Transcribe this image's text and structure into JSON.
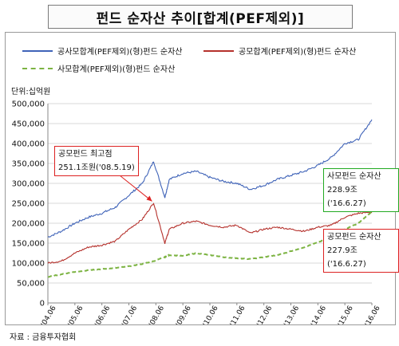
{
  "title": "펀드 순자산 추이[합계(PEF제외)]",
  "unit_label": "단위:십억원",
  "source": "자료 : 금융투자협회",
  "legend": [
    {
      "label": "공사모합계(PEF제외)(형)펀드 순자산",
      "color": "#3f63b8",
      "style": "solid"
    },
    {
      "label": "공모합계(PEF제외)(형)펀드 순자산",
      "color": "#b5312c",
      "style": "solid"
    },
    {
      "label": "사모합계(PEF제외)(형)펀드 순자산",
      "color": "#7cb342",
      "style": "dashed"
    }
  ],
  "annotations": [
    {
      "line1": "공모펀드 최고점",
      "line2": "251.1조원('08.5.19)",
      "border": "#d22"
    },
    {
      "line1": "사모펀드 순자산",
      "line2": "228.9조('16.6.27)",
      "border": "#2a2"
    },
    {
      "line1": "공모펀드 순자산",
      "line2": "227.9조('16.6.27)",
      "border": "#d22"
    }
  ],
  "chart_data": {
    "type": "line",
    "ylim": [
      0,
      500000
    ],
    "y_ticks": [
      "0",
      "50,000",
      "100,000",
      "150,000",
      "200,000",
      "250,000",
      "300,000",
      "350,000",
      "400,000",
      "450,000",
      "500,000"
    ],
    "x_ticks": [
      "'04.06",
      "'05.06",
      "'06.06",
      "'07.06",
      "'08.06",
      "'09.06",
      "'10.06",
      "'11.06",
      "'12.06",
      "'13.06",
      "'14.06",
      "'15.06",
      "'16.06"
    ],
    "grid": true,
    "series": [
      {
        "name": "공사모합계(PEF제외)(형)펀드 순자산",
        "x": [
          "'04.06",
          "'04.12",
          "'05.06",
          "'05.12",
          "'06.06",
          "'06.12",
          "'07.06",
          "'07.12",
          "'08.05",
          "'08.10",
          "'08.12",
          "'09.06",
          "'09.12",
          "'10.06",
          "'10.12",
          "'11.06",
          "'11.12",
          "'12.06",
          "'12.12",
          "'13.06",
          "'13.12",
          "'14.06",
          "'14.12",
          "'15.06",
          "'15.12",
          "'16.06"
        ],
        "values": [
          165000,
          180000,
          200000,
          215000,
          225000,
          240000,
          270000,
          300000,
          355000,
          265000,
          310000,
          325000,
          330000,
          315000,
          305000,
          300000,
          285000,
          295000,
          310000,
          320000,
          330000,
          345000,
          365000,
          400000,
          410000,
          460000
        ]
      },
      {
        "name": "공모합계(PEF제외)(형)펀드 순자산",
        "x": [
          "'04.06",
          "'04.12",
          "'05.06",
          "'05.12",
          "'06.06",
          "'06.12",
          "'07.06",
          "'07.12",
          "'08.05",
          "'08.10",
          "'08.12",
          "'09.06",
          "'09.12",
          "'10.06",
          "'10.12",
          "'11.06",
          "'11.12",
          "'12.06",
          "'12.12",
          "'13.06",
          "'13.12",
          "'14.06",
          "'14.12",
          "'15.06",
          "'15.12",
          "'16.06"
        ],
        "values": [
          100000,
          105000,
          125000,
          140000,
          145000,
          155000,
          185000,
          210000,
          251100,
          150000,
          185000,
          200000,
          205000,
          195000,
          190000,
          195000,
          175000,
          185000,
          190000,
          185000,
          180000,
          190000,
          195000,
          215000,
          225000,
          227900
        ]
      },
      {
        "name": "사모합계(PEF제외)(형)펀드 순자산",
        "x": [
          "'04.06",
          "'04.12",
          "'05.06",
          "'05.12",
          "'06.06",
          "'06.12",
          "'07.06",
          "'07.12",
          "'08.05",
          "'08.10",
          "'08.12",
          "'09.06",
          "'09.12",
          "'10.06",
          "'10.12",
          "'11.06",
          "'11.12",
          "'12.06",
          "'12.12",
          "'13.06",
          "'13.12",
          "'14.06",
          "'14.12",
          "'15.06",
          "'15.12",
          "'16.06"
        ],
        "values": [
          65000,
          72000,
          78000,
          82000,
          85000,
          88000,
          92000,
          98000,
          105000,
          115000,
          120000,
          118000,
          125000,
          120000,
          115000,
          112000,
          110000,
          115000,
          120000,
          130000,
          140000,
          152000,
          165000,
          185000,
          200000,
          228900
        ]
      }
    ]
  }
}
